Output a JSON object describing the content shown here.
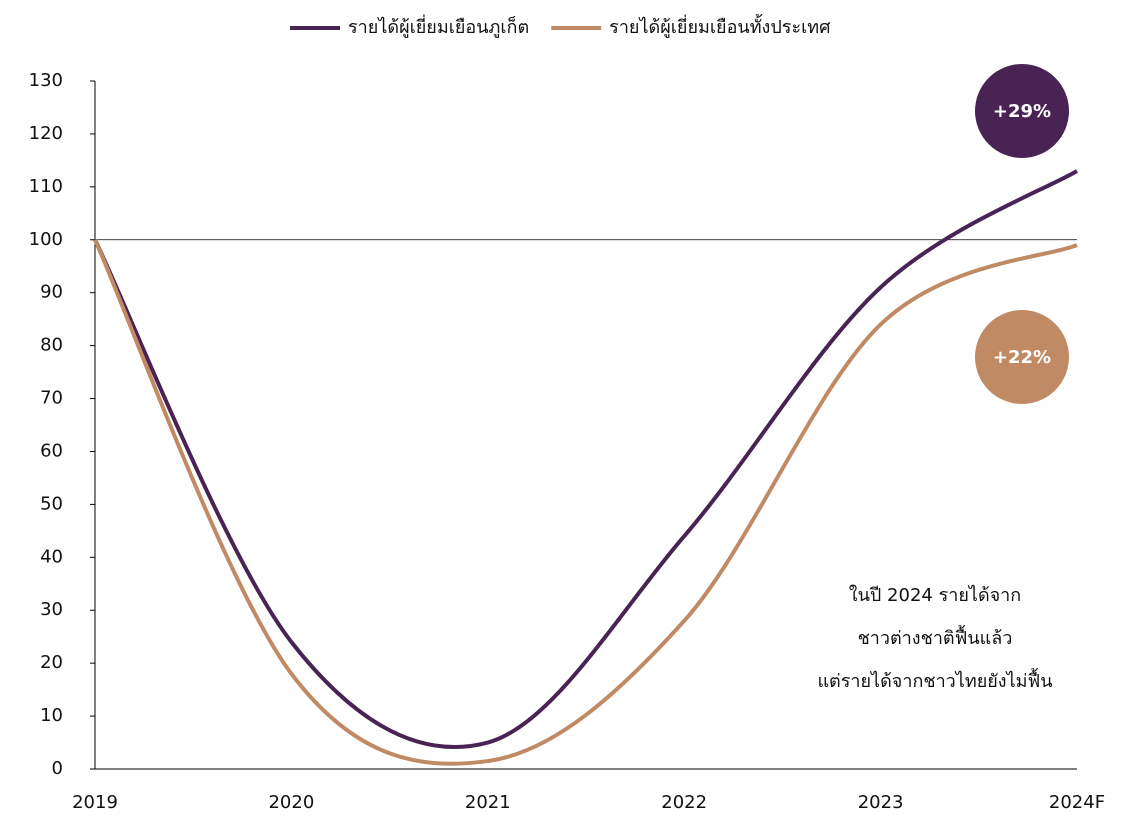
{
  "chart_data": {
    "type": "line",
    "categories": [
      "2019",
      "2020",
      "2021",
      "2022",
      "2023",
      "2024F"
    ],
    "series": [
      {
        "name": "รายได้ผู้เยี่ยมเยือนภูเก็ต",
        "color": "#4a2355",
        "values": [
          100,
          24,
          5,
          44,
          91,
          113
        ]
      },
      {
        "name": "รายได้ผู้เยี่ยมเยือนทั้งประเทศ",
        "color": "#c08a64",
        "values": [
          100,
          18,
          1.5,
          28,
          84,
          99
        ]
      }
    ],
    "ylim": [
      0,
      130
    ],
    "yticks": [
      0,
      10,
      20,
      30,
      40,
      50,
      60,
      70,
      80,
      90,
      100,
      110,
      120,
      130
    ],
    "reference_line": 100,
    "badges": [
      {
        "label": "+29%",
        "color": "#4a2355"
      },
      {
        "label": "+22%",
        "color": "#c08a64"
      }
    ],
    "annotation": [
      "ในปี 2024 รายได้จาก",
      "ชาวต่างชาติฟื้นแล้ว",
      "แต่รายได้จากชาวไทยยังไม่ฟื้น"
    ],
    "legend": "top"
  }
}
